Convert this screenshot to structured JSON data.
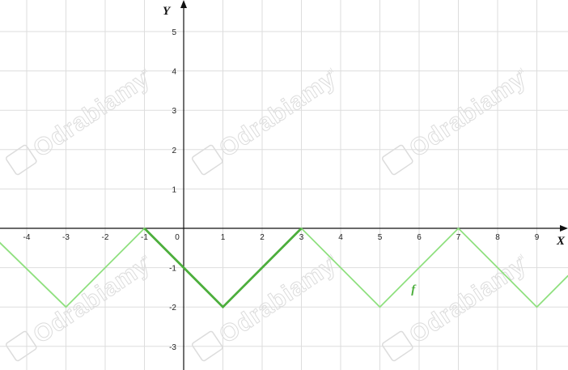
{
  "chart_data": {
    "type": "line",
    "xlabel": "X",
    "ylabel": "Y",
    "xlim": [
      -4.7,
      9.8
    ],
    "ylim": [
      -3.6,
      5.9
    ],
    "x_ticks": [
      -4,
      -3,
      -2,
      -1,
      0,
      1,
      2,
      3,
      4,
      5,
      6,
      7,
      8,
      9
    ],
    "y_ticks": [
      -3,
      -2,
      -1,
      1,
      2,
      3,
      4,
      5
    ],
    "grid": true,
    "series": [
      {
        "name": "f",
        "color": "#8fe07f",
        "x": [
          -4.7,
          -3,
          -1,
          1,
          3,
          5,
          7,
          9,
          9.8
        ],
        "y": [
          -0.35,
          -2,
          0,
          -2,
          0,
          -2,
          0,
          -2,
          -1.2
        ]
      }
    ],
    "highlight": {
      "color": "#4cae3c",
      "x": [
        -1,
        1,
        3
      ],
      "y": [
        0,
        -2,
        0
      ]
    },
    "function_label": {
      "text": "f",
      "x": 5.8,
      "y": -1.65
    }
  },
  "watermark": {
    "text": "Odrabiamy",
    "suffix": ".pl",
    "color": "#dcdcdc"
  }
}
